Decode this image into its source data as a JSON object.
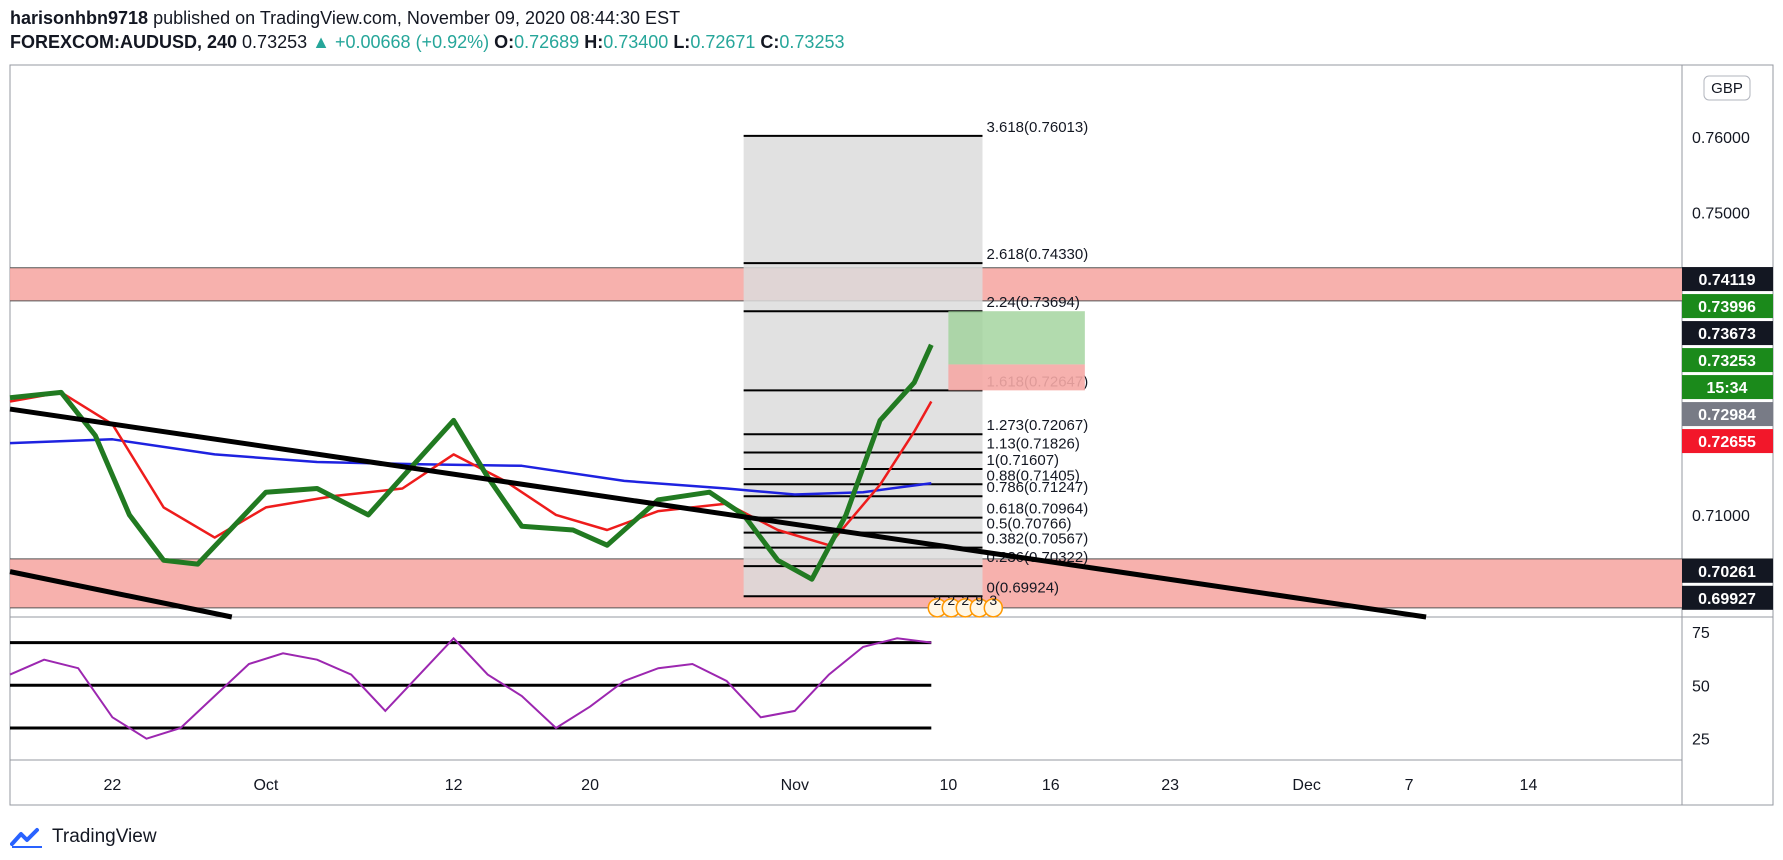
{
  "header": {
    "author": "harisonhbn9718",
    "published_text": "published on TradingView.com, November 09, 2020 08:44:30 EST",
    "symbol": "FOREXCOM:AUDUSD, 240",
    "last": "0.73253",
    "arrow": "▲",
    "change": "+0.00668 (+0.92%)",
    "o_label": "O:",
    "o": "0.72689",
    "h_label": "H:",
    "h": "0.73400",
    "l_label": "L:",
    "l": "0.72671",
    "c_label": "C:",
    "c": "0.73253"
  },
  "currency_badge": "GBP",
  "footer": {
    "brand": "TradingView"
  },
  "colors": {
    "up": "#26a69a",
    "ema_fast": "#1e22e0",
    "ema_mid": "#ee1c1c",
    "ema_slow": "#217a21",
    "rsi": "#9c27b0",
    "zone": "#f6a9a4",
    "fib_box": "#dcdcdc",
    "target": "#9fd29a",
    "stop": "#f5a9a5",
    "trendline": "#000000",
    "price_black": "#131722",
    "price_green": "#1b8a1b",
    "price_red": "#f2172a",
    "price_gray": "#787b86"
  },
  "chart_data": {
    "type": "line",
    "title": "",
    "xlabel": "",
    "ylabel": "",
    "ylim": [
      0.6965,
      0.7695
    ],
    "y_ticks": [
      "0.76000",
      "0.75000",
      "0.71000"
    ],
    "y_tick_values": [
      0.76,
      0.75,
      0.71
    ],
    "x_tick_labels": [
      "22",
      "Oct",
      "12",
      "20",
      "Nov",
      "10",
      "16",
      "23",
      "Dec",
      "7",
      "14"
    ],
    "x_tick_dates": [
      "2020-09-22",
      "2020-10-01",
      "2020-10-12",
      "2020-10-20",
      "2020-11-01",
      "2020-11-10",
      "2020-11-16",
      "2020-11-23",
      "2020-12-01",
      "2020-12-07",
      "2020-12-14"
    ],
    "x_start": "2020-09-16",
    "x_end": "2020-12-23",
    "series": [
      {
        "name": "",
        "x": [
          "2020-09-16",
          "2020-09-19",
          "2020-09-21",
          "2020-09-23",
          "2020-09-25",
          "2020-09-27",
          "2020-10-01",
          "2020-10-04",
          "2020-10-07",
          "2020-10-09",
          "2020-10-12",
          "2020-10-14",
          "2020-10-16",
          "2020-10-19",
          "2020-10-21",
          "2020-10-24",
          "2020-10-27",
          "2020-10-29",
          "2020-10-31",
          "2020-11-02",
          "2020-11-04",
          "2020-11-06",
          "2020-11-08",
          "2020-11-09"
        ],
        "values": [
          0.7255,
          0.7262,
          0.7205,
          0.71,
          0.704,
          0.7035,
          0.713,
          0.7135,
          0.71,
          0.715,
          0.7225,
          0.715,
          0.7085,
          0.708,
          0.706,
          0.712,
          0.713,
          0.71,
          0.704,
          0.7015,
          0.71,
          0.7225,
          0.7275,
          0.7325
        ]
      },
      {
        "name": "",
        "x": [
          "2020-09-16",
          "2020-09-19",
          "2020-09-22",
          "2020-09-25",
          "2020-09-28",
          "2020-10-01",
          "2020-10-05",
          "2020-10-09",
          "2020-10-12",
          "2020-10-15",
          "2020-10-18",
          "2020-10-21",
          "2020-10-24",
          "2020-10-28",
          "2020-10-31",
          "2020-11-03",
          "2020-11-06",
          "2020-11-08",
          "2020-11-09"
        ],
        "values": [
          0.725,
          0.7262,
          0.722,
          0.711,
          0.707,
          0.711,
          0.7125,
          0.7135,
          0.718,
          0.7145,
          0.71,
          0.708,
          0.7105,
          0.7115,
          0.708,
          0.706,
          0.714,
          0.721,
          0.725
        ]
      },
      {
        "name": "",
        "x": [
          "2020-09-16",
          "2020-09-22",
          "2020-09-28",
          "2020-10-04",
          "2020-10-10",
          "2020-10-16",
          "2020-10-22",
          "2020-10-28",
          "2020-11-01",
          "2020-11-05",
          "2020-11-09"
        ],
        "values": [
          0.7195,
          0.72,
          0.718,
          0.717,
          0.7167,
          0.7165,
          0.7145,
          0.7135,
          0.7127,
          0.713,
          0.7142
        ]
      }
    ],
    "trendlines": [
      {
        "x": [
          "2020-09-16",
          "2020-12-08"
        ],
        "values": [
          0.724,
          0.6965
        ]
      },
      {
        "x": [
          "2020-09-16",
          "2020-09-29"
        ],
        "values": [
          0.7025,
          0.6965
        ]
      }
    ],
    "zones": [
      {
        "from": 0.7399,
        "to": 0.7411
      },
      {
        "from": 0.6993,
        "to": 0.7026
      }
    ],
    "fib_box": {
      "x_from": "2020-10-29",
      "x_to": "2020-11-12",
      "low": 0.6992,
      "high": 0.7601
    },
    "fib_levels": [
      {
        "label": "3.618(0.76013)",
        "value": 0.76013
      },
      {
        "label": "2.618(0.74330)",
        "value": 0.7433
      },
      {
        "label": "2.24(0.73694)",
        "value": 0.73694
      },
      {
        "label": "1.618(0.72647)",
        "value": 0.72647
      },
      {
        "label": "1.273(0.72067)",
        "value": 0.72067
      },
      {
        "label": "1.13(0.71826)",
        "value": 0.71826
      },
      {
        "label": "1(0.71607)",
        "value": 0.71607
      },
      {
        "label": "0.88(0.71405)",
        "value": 0.71405
      },
      {
        "label": "0.786(0.71247)",
        "value": 0.71247
      },
      {
        "label": "0.618(0.70964)",
        "value": 0.70964
      },
      {
        "label": "0.5(0.70766)",
        "value": 0.70766
      },
      {
        "label": "0.382(0.70567)",
        "value": 0.70567
      },
      {
        "label": "0.236(0.70322)",
        "value": 0.70322
      },
      {
        "label": "0(0.69924)",
        "value": 0.69924
      }
    ],
    "position": {
      "x_from": "2020-11-10",
      "x_to": "2020-11-18",
      "target": 0.73694,
      "entry": 0.7299,
      "stop": 0.72647
    },
    "event_markers": [
      "2",
      "2",
      "2",
      "9",
      "3"
    ],
    "price_labels": [
      {
        "text": "0.74119",
        "value": 0.74119,
        "bg": "#131722"
      },
      {
        "text": "0.73996",
        "value": 0.73996,
        "bg": "#1b8a1b"
      },
      {
        "text": "0.73673",
        "value": 0.73673,
        "bg": "#131722"
      },
      {
        "text": "0.73253",
        "value": 0.73253,
        "bg": "#1b8a1b"
      },
      {
        "text": "15:34",
        "value": 0.7286,
        "bg": "#1b8a1b"
      },
      {
        "text": "0.72984",
        "value": 0.72984,
        "bg": "#787b86"
      },
      {
        "text": "0.72655",
        "value": 0.72655,
        "bg": "#f2172a"
      },
      {
        "text": "0.70261",
        "value": 0.70261,
        "bg": "#131722"
      },
      {
        "text": "0.69927",
        "value": 0.69927,
        "bg": "#131722"
      }
    ],
    "rsi": {
      "ylim": [
        15,
        82
      ],
      "y_ticks": [
        75,
        50,
        25
      ],
      "levels": [
        70,
        50,
        30
      ],
      "x": [
        "2020-09-16",
        "2020-09-18",
        "2020-09-20",
        "2020-09-22",
        "2020-09-24",
        "2020-09-26",
        "2020-09-28",
        "2020-09-30",
        "2020-10-02",
        "2020-10-04",
        "2020-10-06",
        "2020-10-08",
        "2020-10-10",
        "2020-10-12",
        "2020-10-14",
        "2020-10-16",
        "2020-10-18",
        "2020-10-20",
        "2020-10-22",
        "2020-10-24",
        "2020-10-26",
        "2020-10-28",
        "2020-10-30",
        "2020-11-01",
        "2020-11-03",
        "2020-11-05",
        "2020-11-07",
        "2020-11-09"
      ],
      "values": [
        55,
        62,
        58,
        35,
        25,
        30,
        45,
        60,
        65,
        62,
        55,
        38,
        55,
        72,
        55,
        45,
        30,
        40,
        52,
        58,
        60,
        52,
        35,
        38,
        55,
        68,
        72,
        70
      ]
    }
  }
}
